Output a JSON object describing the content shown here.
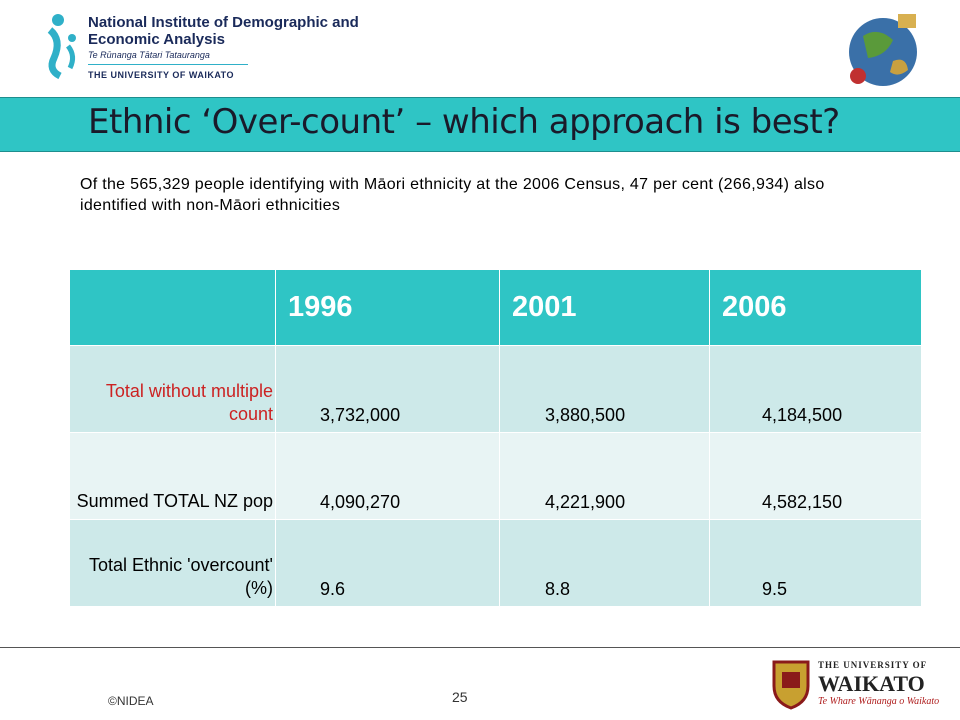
{
  "header": {
    "org_name": "National Institute of Demographic and Economic Analysis",
    "maori_name": "Te Rūnanga Tātari Tatauranga",
    "university": "THE UNIVERSITY OF WAIKATO"
  },
  "title": "Ethnic ‘Over-count’ – which approach is best?",
  "intro": "Of the 565,329 people identifying with Māori ethnicity at the 2006 Census, 47 per cent (266,934) also identified with non-Māori ethnicities",
  "table": {
    "columns": [
      "1996",
      "2001",
      "2006"
    ],
    "rows": [
      [
        "Total without multiple count",
        "3,732,000",
        "3,880,500",
        "4,184,500"
      ],
      [
        "Summed TOTAL NZ pop",
        "4,090,270",
        "4,221,900",
        "4,582,150"
      ],
      [
        "Total Ethnic 'overcount' (%)",
        "9.6",
        "8.8",
        "9.5"
      ]
    ]
  },
  "footer": {
    "copyright": "©NIDEA",
    "page": "25",
    "logo_top": "THE UNIVERSITY OF",
    "logo_name": "WAIKATO",
    "logo_motto": "Te Whare Wānanga o Waikato"
  }
}
